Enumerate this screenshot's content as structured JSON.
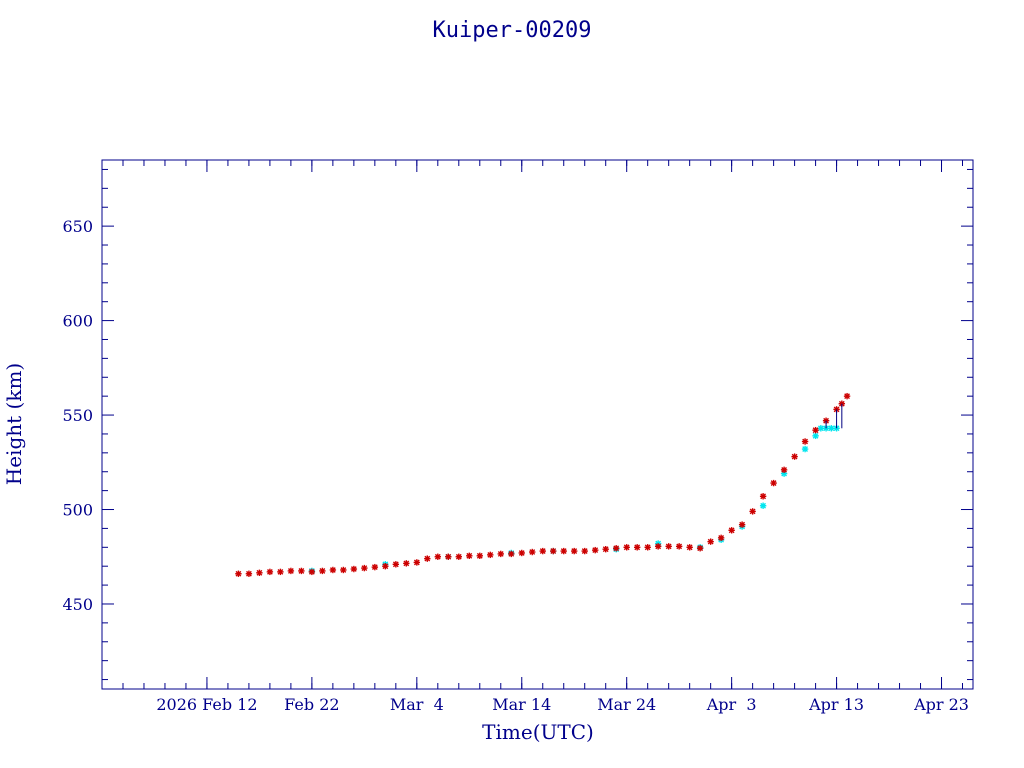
{
  "chart_data": {
    "type": "scatter",
    "title": "Kuiper-00209",
    "xlabel": "Time(UTC)",
    "ylabel": "Height (km)",
    "xlim": [
      "2026-02-02",
      "2026-04-26"
    ],
    "ylim": [
      405,
      685
    ],
    "x_ticks": [
      {
        "date": "2026-02-12",
        "label": "2026 Feb 12"
      },
      {
        "date": "2026-02-22",
        "label": "Feb 22"
      },
      {
        "date": "2026-03-04",
        "label": "Mar  4"
      },
      {
        "date": "2026-03-14",
        "label": "Mar 14"
      },
      {
        "date": "2026-03-24",
        "label": "Mar 24"
      },
      {
        "date": "2026-04-03",
        "label": "Apr  3"
      },
      {
        "date": "2026-04-13",
        "label": "Apr 13"
      },
      {
        "date": "2026-04-23",
        "label": "Apr 23"
      }
    ],
    "y_ticks": [
      450,
      500,
      550,
      600,
      650
    ],
    "grid": false,
    "colors": {
      "axis": "#00008b",
      "series_red": "#cc0000",
      "series_cyan": "#00e5ee",
      "errorbar": "#000080"
    },
    "series": [
      {
        "color": "#cc0000",
        "marker": "star",
        "points": [
          [
            "2026-02-15",
            466
          ],
          [
            "2026-02-16",
            466
          ],
          [
            "2026-02-17",
            466.5
          ],
          [
            "2026-02-18",
            467
          ],
          [
            "2026-02-19",
            467
          ],
          [
            "2026-02-20",
            467.5
          ],
          [
            "2026-02-21",
            467.5
          ],
          [
            "2026-02-22",
            467
          ],
          [
            "2026-02-23",
            467.5
          ],
          [
            "2026-02-24",
            468
          ],
          [
            "2026-02-25",
            468
          ],
          [
            "2026-02-26",
            468.5
          ],
          [
            "2026-02-27",
            469
          ],
          [
            "2026-02-28",
            469.5
          ],
          [
            "2026-03-01",
            470
          ],
          [
            "2026-03-02",
            471
          ],
          [
            "2026-03-03",
            471.5
          ],
          [
            "2026-03-04",
            472
          ],
          [
            "2026-03-05",
            474
          ],
          [
            "2026-03-06",
            475
          ],
          [
            "2026-03-07",
            475
          ],
          [
            "2026-03-08",
            475
          ],
          [
            "2026-03-09",
            475.5
          ],
          [
            "2026-03-10",
            475.5
          ],
          [
            "2026-03-11",
            476
          ],
          [
            "2026-03-12",
            476.5
          ],
          [
            "2026-03-13",
            476.5
          ],
          [
            "2026-03-14",
            477
          ],
          [
            "2026-03-15",
            477.5
          ],
          [
            "2026-03-16",
            478
          ],
          [
            "2026-03-17",
            478
          ],
          [
            "2026-03-18",
            478
          ],
          [
            "2026-03-19",
            478
          ],
          [
            "2026-03-20",
            478
          ],
          [
            "2026-03-21",
            478.5
          ],
          [
            "2026-03-22",
            479
          ],
          [
            "2026-03-23",
            479.5
          ],
          [
            "2026-03-24",
            480
          ],
          [
            "2026-03-25",
            480
          ],
          [
            "2026-03-26",
            480
          ],
          [
            "2026-03-27",
            480.5
          ],
          [
            "2026-03-28",
            480.5
          ],
          [
            "2026-03-29",
            480.5
          ],
          [
            "2026-03-30",
            480
          ],
          [
            "2026-03-31",
            479.5
          ],
          [
            "2026-04-01",
            483
          ],
          [
            "2026-04-02",
            485
          ],
          [
            "2026-04-03",
            489
          ],
          [
            "2026-04-04",
            492
          ],
          [
            "2026-04-05",
            499
          ],
          [
            "2026-04-06",
            507
          ],
          [
            "2026-04-07",
            514
          ],
          [
            "2026-04-08",
            521
          ],
          [
            "2026-04-09",
            528
          ],
          [
            "2026-04-10",
            536
          ],
          [
            "2026-04-11",
            542
          ],
          [
            "2026-04-12",
            547
          ],
          [
            "2026-04-13",
            553
          ],
          [
            "2026-04-13.5",
            556
          ],
          [
            "2026-04-14",
            560
          ]
        ]
      },
      {
        "color": "#00e5ee",
        "marker": "star",
        "points": [
          [
            "2026-02-22",
            467.5
          ],
          [
            "2026-03-01",
            471
          ],
          [
            "2026-03-07",
            475
          ],
          [
            "2026-03-13",
            477
          ],
          [
            "2026-03-17",
            478
          ],
          [
            "2026-03-23",
            479
          ],
          [
            "2026-03-27",
            482
          ],
          [
            "2026-03-31",
            480
          ],
          [
            "2026-04-02",
            484
          ],
          [
            "2026-04-04",
            491
          ],
          [
            "2026-04-06",
            502
          ],
          [
            "2026-04-08",
            519
          ],
          [
            "2026-04-10",
            532
          ],
          [
            "2026-04-11",
            539
          ],
          [
            "2026-04-11.5",
            543
          ],
          [
            "2026-04-12",
            543
          ],
          [
            "2026-04-12.5",
            543
          ],
          [
            "2026-04-13",
            543
          ]
        ]
      }
    ]
  }
}
